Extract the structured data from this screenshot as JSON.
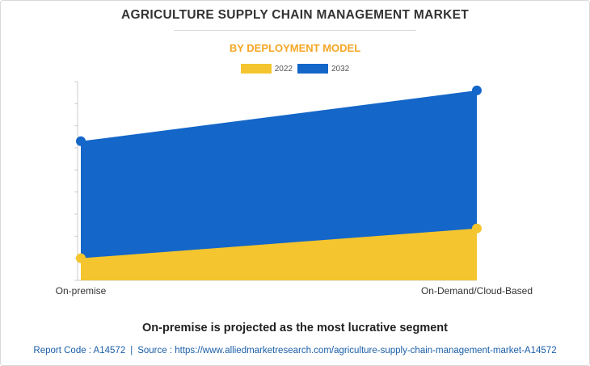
{
  "header": {
    "title": "AGRICULTURE SUPPLY CHAIN MANAGEMENT MARKET",
    "subtitle": "BY DEPLOYMENT MODEL"
  },
  "colors": {
    "series_2022": "#f4c52e",
    "series_2032": "#1466c8",
    "subtitle": "#f5a623",
    "footer": "#1a5ea8"
  },
  "chart_data": {
    "type": "area",
    "categories": [
      "On-premise",
      "On-Demand/Cloud-Based"
    ],
    "series": [
      {
        "name": "2022",
        "values": [
          1.0,
          2.35
        ]
      },
      {
        "name": "2032",
        "values": [
          6.3,
          8.6
        ]
      }
    ],
    "ylim": [
      0,
      9
    ],
    "xlabel": "",
    "ylabel": "",
    "legend": [
      "2022",
      "2032"
    ],
    "legend_position": "top-center",
    "grid": false
  },
  "headline": "On-premise is projected as the most lucrative segment",
  "footer": {
    "report_code": "Report Code : A14572",
    "separator": "|",
    "source": "Source : https://www.alliedmarketresearch.com/agriculture-supply-chain-management-market-A14572"
  }
}
